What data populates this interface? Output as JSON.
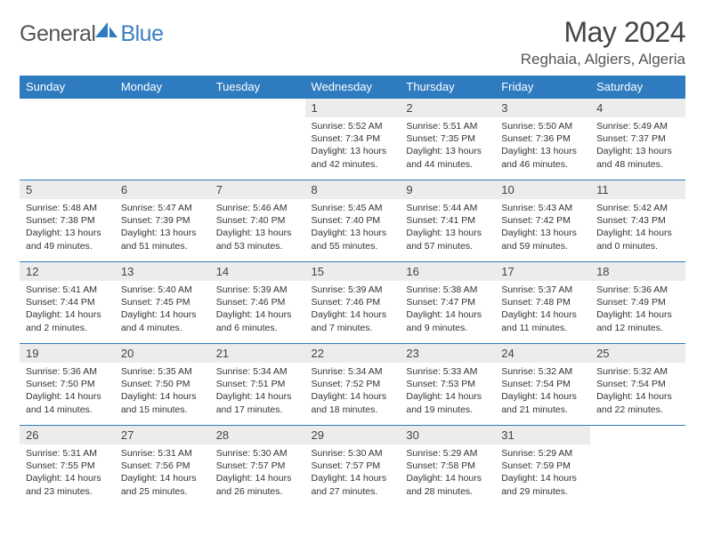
{
  "brand": {
    "part1": "General",
    "part2": "Blue"
  },
  "title": "May 2024",
  "location": "Reghaia, Algiers, Algeria",
  "colors": {
    "headerBar": "#2f7bbf",
    "daynumBg": "#ececec",
    "rowBorder": "#2f7bbf",
    "text": "#333333",
    "titleText": "#454545"
  },
  "weekdays": [
    "Sunday",
    "Monday",
    "Tuesday",
    "Wednesday",
    "Thursday",
    "Friday",
    "Saturday"
  ],
  "weeks": [
    [
      {
        "n": "",
        "lines": [
          "",
          "",
          "",
          ""
        ]
      },
      {
        "n": "",
        "lines": [
          "",
          "",
          "",
          ""
        ]
      },
      {
        "n": "",
        "lines": [
          "",
          "",
          "",
          ""
        ]
      },
      {
        "n": "1",
        "lines": [
          "Sunrise: 5:52 AM",
          "Sunset: 7:34 PM",
          "Daylight: 13 hours",
          "and 42 minutes."
        ]
      },
      {
        "n": "2",
        "lines": [
          "Sunrise: 5:51 AM",
          "Sunset: 7:35 PM",
          "Daylight: 13 hours",
          "and 44 minutes."
        ]
      },
      {
        "n": "3",
        "lines": [
          "Sunrise: 5:50 AM",
          "Sunset: 7:36 PM",
          "Daylight: 13 hours",
          "and 46 minutes."
        ]
      },
      {
        "n": "4",
        "lines": [
          "Sunrise: 5:49 AM",
          "Sunset: 7:37 PM",
          "Daylight: 13 hours",
          "and 48 minutes."
        ]
      }
    ],
    [
      {
        "n": "5",
        "lines": [
          "Sunrise: 5:48 AM",
          "Sunset: 7:38 PM",
          "Daylight: 13 hours",
          "and 49 minutes."
        ]
      },
      {
        "n": "6",
        "lines": [
          "Sunrise: 5:47 AM",
          "Sunset: 7:39 PM",
          "Daylight: 13 hours",
          "and 51 minutes."
        ]
      },
      {
        "n": "7",
        "lines": [
          "Sunrise: 5:46 AM",
          "Sunset: 7:40 PM",
          "Daylight: 13 hours",
          "and 53 minutes."
        ]
      },
      {
        "n": "8",
        "lines": [
          "Sunrise: 5:45 AM",
          "Sunset: 7:40 PM",
          "Daylight: 13 hours",
          "and 55 minutes."
        ]
      },
      {
        "n": "9",
        "lines": [
          "Sunrise: 5:44 AM",
          "Sunset: 7:41 PM",
          "Daylight: 13 hours",
          "and 57 minutes."
        ]
      },
      {
        "n": "10",
        "lines": [
          "Sunrise: 5:43 AM",
          "Sunset: 7:42 PM",
          "Daylight: 13 hours",
          "and 59 minutes."
        ]
      },
      {
        "n": "11",
        "lines": [
          "Sunrise: 5:42 AM",
          "Sunset: 7:43 PM",
          "Daylight: 14 hours",
          "and 0 minutes."
        ]
      }
    ],
    [
      {
        "n": "12",
        "lines": [
          "Sunrise: 5:41 AM",
          "Sunset: 7:44 PM",
          "Daylight: 14 hours",
          "and 2 minutes."
        ]
      },
      {
        "n": "13",
        "lines": [
          "Sunrise: 5:40 AM",
          "Sunset: 7:45 PM",
          "Daylight: 14 hours",
          "and 4 minutes."
        ]
      },
      {
        "n": "14",
        "lines": [
          "Sunrise: 5:39 AM",
          "Sunset: 7:46 PM",
          "Daylight: 14 hours",
          "and 6 minutes."
        ]
      },
      {
        "n": "15",
        "lines": [
          "Sunrise: 5:39 AM",
          "Sunset: 7:46 PM",
          "Daylight: 14 hours",
          "and 7 minutes."
        ]
      },
      {
        "n": "16",
        "lines": [
          "Sunrise: 5:38 AM",
          "Sunset: 7:47 PM",
          "Daylight: 14 hours",
          "and 9 minutes."
        ]
      },
      {
        "n": "17",
        "lines": [
          "Sunrise: 5:37 AM",
          "Sunset: 7:48 PM",
          "Daylight: 14 hours",
          "and 11 minutes."
        ]
      },
      {
        "n": "18",
        "lines": [
          "Sunrise: 5:36 AM",
          "Sunset: 7:49 PM",
          "Daylight: 14 hours",
          "and 12 minutes."
        ]
      }
    ],
    [
      {
        "n": "19",
        "lines": [
          "Sunrise: 5:36 AM",
          "Sunset: 7:50 PM",
          "Daylight: 14 hours",
          "and 14 minutes."
        ]
      },
      {
        "n": "20",
        "lines": [
          "Sunrise: 5:35 AM",
          "Sunset: 7:50 PM",
          "Daylight: 14 hours",
          "and 15 minutes."
        ]
      },
      {
        "n": "21",
        "lines": [
          "Sunrise: 5:34 AM",
          "Sunset: 7:51 PM",
          "Daylight: 14 hours",
          "and 17 minutes."
        ]
      },
      {
        "n": "22",
        "lines": [
          "Sunrise: 5:34 AM",
          "Sunset: 7:52 PM",
          "Daylight: 14 hours",
          "and 18 minutes."
        ]
      },
      {
        "n": "23",
        "lines": [
          "Sunrise: 5:33 AM",
          "Sunset: 7:53 PM",
          "Daylight: 14 hours",
          "and 19 minutes."
        ]
      },
      {
        "n": "24",
        "lines": [
          "Sunrise: 5:32 AM",
          "Sunset: 7:54 PM",
          "Daylight: 14 hours",
          "and 21 minutes."
        ]
      },
      {
        "n": "25",
        "lines": [
          "Sunrise: 5:32 AM",
          "Sunset: 7:54 PM",
          "Daylight: 14 hours",
          "and 22 minutes."
        ]
      }
    ],
    [
      {
        "n": "26",
        "lines": [
          "Sunrise: 5:31 AM",
          "Sunset: 7:55 PM",
          "Daylight: 14 hours",
          "and 23 minutes."
        ]
      },
      {
        "n": "27",
        "lines": [
          "Sunrise: 5:31 AM",
          "Sunset: 7:56 PM",
          "Daylight: 14 hours",
          "and 25 minutes."
        ]
      },
      {
        "n": "28",
        "lines": [
          "Sunrise: 5:30 AM",
          "Sunset: 7:57 PM",
          "Daylight: 14 hours",
          "and 26 minutes."
        ]
      },
      {
        "n": "29",
        "lines": [
          "Sunrise: 5:30 AM",
          "Sunset: 7:57 PM",
          "Daylight: 14 hours",
          "and 27 minutes."
        ]
      },
      {
        "n": "30",
        "lines": [
          "Sunrise: 5:29 AM",
          "Sunset: 7:58 PM",
          "Daylight: 14 hours",
          "and 28 minutes."
        ]
      },
      {
        "n": "31",
        "lines": [
          "Sunrise: 5:29 AM",
          "Sunset: 7:59 PM",
          "Daylight: 14 hours",
          "and 29 minutes."
        ]
      },
      {
        "n": "",
        "lines": [
          "",
          "",
          "",
          ""
        ]
      }
    ]
  ]
}
